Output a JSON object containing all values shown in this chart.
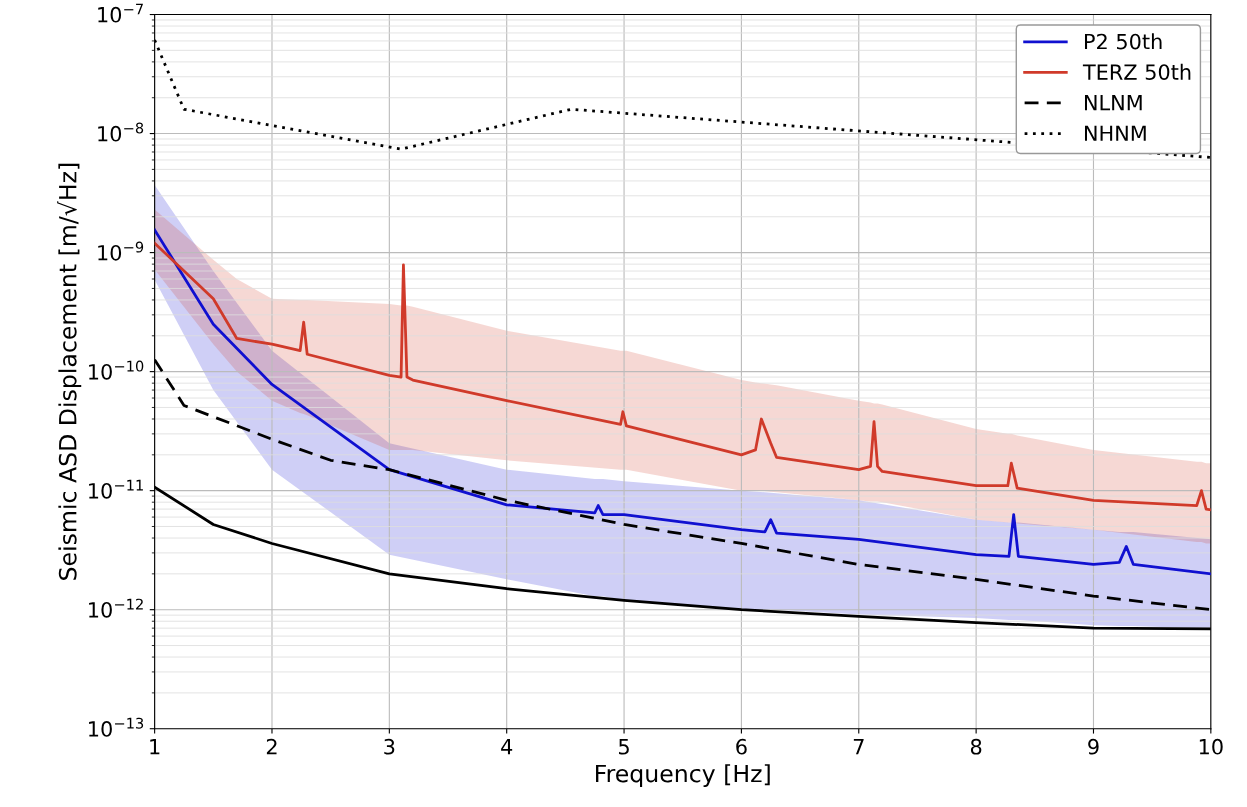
{
  "chart_data": {
    "type": "line",
    "xlabel": "Frequency [Hz]",
    "ylabel": "Seismic ASD Displacement [m/√Hz]",
    "log": "y",
    "grid": true,
    "legend": "top right",
    "xlim": [
      1,
      10
    ],
    "xticks": [
      1,
      2,
      3,
      4,
      5,
      6,
      7,
      8,
      9,
      10
    ],
    "ylim": [
      1e-13,
      1e-07
    ],
    "yticks": [
      {
        "value": 1e-13,
        "label": "10$^{−13}$"
      },
      {
        "value": 1e-12,
        "label": "10$^{−12}$"
      },
      {
        "value": 1e-11,
        "label": "10$^{−11}$"
      },
      {
        "value": 1e-10,
        "label": "10$^{−10}$"
      },
      {
        "value": 1e-09,
        "label": "10$^{−9}$"
      },
      {
        "value": 1e-08,
        "label": "10$^{−8}$"
      },
      {
        "value": 1e-07,
        "label": "10$^{−7}$"
      }
    ],
    "series": [
      {
        "name": "P2 50th",
        "color": "#1010d0",
        "line_style": "solid",
        "x": [
          1,
          1.5,
          2,
          3,
          4,
          4.75,
          4.78,
          4.82,
          5,
          6,
          6.2,
          6.25,
          6.3,
          7,
          8,
          8.28,
          8.32,
          8.36,
          9,
          9.22,
          9.28,
          9.34,
          10
        ],
        "values": [
          1.55e-09,
          2.5e-10,
          7.8e-11,
          1.5e-11,
          7.6e-12,
          6.5e-12,
          7.5e-12,
          6.3e-12,
          6.3e-12,
          4.7e-12,
          4.5e-12,
          5.7e-12,
          4.4e-12,
          3.9e-12,
          2.9e-12,
          2.8e-12,
          6.3e-12,
          2.8e-12,
          2.4e-12,
          2.5e-12,
          3.4e-12,
          2.4e-12,
          2e-12
        ],
        "lower": [
          5.9e-10,
          7e-11,
          1.5e-11,
          2.9e-12,
          1.8e-12,
          1.3e-12,
          1.3e-12,
          1.3e-12,
          1.2e-12,
          1e-12,
          1e-12,
          1e-12,
          1e-12,
          9.1e-13,
          8.5e-13,
          8.2e-13,
          8.2e-13,
          8.2e-13,
          7.4e-13,
          7.3e-13,
          7.3e-13,
          7.3e-13,
          6.9e-13
        ],
        "upper": [
          3.7e-09,
          7e-10,
          1.5e-10,
          2.5e-11,
          1.5e-11,
          1.25e-11,
          1.25e-11,
          1.25e-11,
          1.2e-11,
          1e-11,
          9.7e-12,
          9.6e-12,
          9.5e-12,
          8.3e-12,
          5.7e-12,
          5.4e-12,
          5.4e-12,
          5.4e-12,
          4.7e-12,
          4.5e-12,
          4.5e-12,
          4.5e-12,
          3.9e-12
        ]
      },
      {
        "name": "TERZ 50th",
        "color": "#d03a2a",
        "line_style": "solid",
        "x": [
          1,
          1.5,
          1.7,
          2,
          2.24,
          2.27,
          2.3,
          3.0,
          3.1,
          3.12,
          3.15,
          3.2,
          4,
          4.97,
          4.99,
          5.02,
          6,
          6.12,
          6.17,
          6.25,
          6.3,
          7,
          7.1,
          7.13,
          7.16,
          7.2,
          8,
          8.27,
          8.3,
          8.35,
          9,
          9.88,
          9.92,
          9.96,
          10
        ],
        "values": [
          1.2e-09,
          4.1e-10,
          1.9e-10,
          1.7e-10,
          1.5e-10,
          2.6e-10,
          1.4e-10,
          9.3e-11,
          9e-11,
          7.9e-10,
          9e-11,
          8.5e-11,
          5.7e-11,
          3.6e-11,
          4.6e-11,
          3.5e-11,
          2e-11,
          2.2e-11,
          4e-11,
          2.5e-11,
          1.9e-11,
          1.5e-11,
          1.6e-11,
          3.8e-11,
          1.6e-11,
          1.45e-11,
          1.1e-11,
          1.1e-11,
          1.7e-11,
          1.05e-11,
          8.3e-12,
          7.5e-12,
          1e-11,
          7e-12,
          6.9e-12
        ],
        "lower": [
          7.2e-10,
          1.7e-10,
          1e-10,
          5.7e-11,
          4.5e-11,
          4.4e-11,
          4.3e-11,
          2.2e-11,
          2.2e-11,
          2.2e-11,
          2.2e-11,
          2.2e-11,
          1.8e-11,
          1.5e-11,
          1.5e-11,
          1.5e-11,
          1e-11,
          1e-11,
          1e-11,
          9.8e-12,
          9.7e-12,
          8.3e-12,
          8.1e-12,
          8.1e-12,
          8.1e-12,
          8e-12,
          5.7e-12,
          5.4e-12,
          5.4e-12,
          5.3e-12,
          4.7e-12,
          3.7e-12,
          3.7e-12,
          3.6e-12,
          3.6e-12
        ],
        "upper": [
          2.3e-09,
          8.7e-10,
          6e-10,
          4.1e-10,
          4e-10,
          4e-10,
          4e-10,
          3.7e-10,
          3.6e-10,
          3.6e-10,
          3.6e-10,
          3.5e-10,
          2.2e-10,
          1.5e-10,
          1.5e-10,
          1.5e-10,
          8.5e-11,
          8.1e-11,
          8e-11,
          7.8e-11,
          7.7e-11,
          5.7e-11,
          5.5e-11,
          5.4e-11,
          5.4e-11,
          5.3e-11,
          3.3e-11,
          3e-11,
          3e-11,
          2.9e-11,
          2.2e-11,
          1.75e-11,
          1.75e-11,
          1.7e-11,
          1.7e-11
        ]
      },
      {
        "name": "NLNM",
        "color": "#000000",
        "line_style": "dashed",
        "x": [
          1,
          1.25,
          2,
          2.5,
          3,
          4,
          5,
          6,
          7,
          8,
          9,
          10
        ],
        "values": [
          1.26e-10,
          5.2e-11,
          2.7e-11,
          1.8e-11,
          1.5e-11,
          8.3e-12,
          5.2e-12,
          3.6e-12,
          2.4e-12,
          1.8e-12,
          1.3e-12,
          1e-12
        ]
      },
      {
        "name": "NHNM",
        "color": "#000000",
        "line_style": "dotted",
        "x": [
          1,
          1.25,
          3.1,
          4.55,
          10
        ],
        "values": [
          6.1e-08,
          1.6e-08,
          7.4e-09,
          1.6e-08,
          6.3e-09
        ]
      },
      {
        "color": "#000000",
        "line_style": "solid",
        "x": [
          1,
          1.5,
          2,
          3,
          4,
          5,
          6,
          7,
          8,
          9,
          10
        ],
        "values": [
          1.07e-11,
          5.2e-12,
          3.6e-12,
          2e-12,
          1.5e-12,
          1.2e-12,
          1e-12,
          8.8e-13,
          7.8e-13,
          7e-13,
          6.9e-13
        ]
      }
    ]
  }
}
